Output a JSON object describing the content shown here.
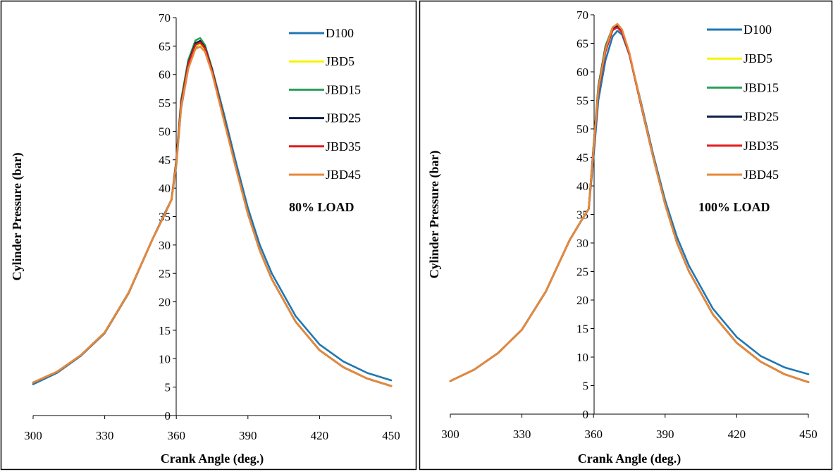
{
  "chart_data": [
    {
      "type": "line",
      "xlabel": "Crank Angle (deg.)",
      "ylabel": "Cylinder Pressure (bar)",
      "annotation": "80% LOAD",
      "xlim": [
        300,
        450
      ],
      "ylim": [
        0,
        70
      ],
      "xticks": [
        300,
        330,
        360,
        390,
        420,
        450
      ],
      "yticks": [
        0,
        5,
        10,
        15,
        20,
        25,
        30,
        35,
        40,
        45,
        50,
        55,
        60,
        65,
        70
      ],
      "grid": false,
      "legend_position": "top-right",
      "x": [
        300,
        310,
        320,
        330,
        340,
        350,
        355,
        358,
        360,
        362,
        365,
        368,
        370,
        372,
        375,
        380,
        385,
        390,
        395,
        400,
        410,
        420,
        430,
        440,
        450
      ],
      "series": [
        {
          "name": "D100",
          "color": "#1f77b4",
          "values": [
            5.5,
            7.5,
            10.5,
            14.5,
            21.5,
            31.0,
            35.5,
            38.0,
            44.0,
            54.0,
            61.0,
            64.8,
            65.5,
            64.8,
            61.0,
            53.0,
            44.5,
            36.5,
            30.0,
            25.0,
            17.5,
            12.5,
            9.5,
            7.5,
            6.2
          ]
        },
        {
          "name": "JBD5",
          "color": "#f5f500",
          "values": [
            5.8,
            7.7,
            10.6,
            14.6,
            21.6,
            31.0,
            35.3,
            38.0,
            44.5,
            54.5,
            61.5,
            65.0,
            65.4,
            64.4,
            60.5,
            52.0,
            43.5,
            35.5,
            29.0,
            24.0,
            16.5,
            11.5,
            8.5,
            6.5,
            5.2
          ]
        },
        {
          "name": "JBD15",
          "color": "#2ca05a",
          "values": [
            5.8,
            7.7,
            10.6,
            14.6,
            21.6,
            31.0,
            35.3,
            38.0,
            45.0,
            55.5,
            62.5,
            66.0,
            66.4,
            65.2,
            61.0,
            52.3,
            43.5,
            35.5,
            29.0,
            24.0,
            16.5,
            11.5,
            8.5,
            6.5,
            5.2
          ]
        },
        {
          "name": "JBD25",
          "color": "#0a1f44",
          "values": [
            5.8,
            7.7,
            10.6,
            14.6,
            21.6,
            31.0,
            35.3,
            38.0,
            44.8,
            55.0,
            62.0,
            65.5,
            65.9,
            64.8,
            60.8,
            52.1,
            43.5,
            35.5,
            29.0,
            24.0,
            16.5,
            11.5,
            8.5,
            6.5,
            5.2
          ]
        },
        {
          "name": "JBD35",
          "color": "#e31a1c",
          "values": [
            5.8,
            7.7,
            10.6,
            14.6,
            21.6,
            31.0,
            35.3,
            38.0,
            44.6,
            54.8,
            61.8,
            65.2,
            65.6,
            64.6,
            60.6,
            52.0,
            43.5,
            35.5,
            29.0,
            24.0,
            16.5,
            11.5,
            8.5,
            6.5,
            5.2
          ]
        },
        {
          "name": "JBD45",
          "color": "#e58a3a",
          "values": [
            5.8,
            7.7,
            10.6,
            14.6,
            21.6,
            31.0,
            35.3,
            38.0,
            44.3,
            54.2,
            61.0,
            64.5,
            64.9,
            64.0,
            60.2,
            51.8,
            43.4,
            35.5,
            29.0,
            24.0,
            16.5,
            11.5,
            8.5,
            6.5,
            5.2
          ]
        }
      ]
    },
    {
      "type": "line",
      "xlabel": "Crank Angle (deg.)",
      "ylabel": "Cylinder Pressure (bar)",
      "annotation": "100% LOAD",
      "xlim": [
        300,
        450
      ],
      "ylim": [
        0,
        70
      ],
      "xticks": [
        300,
        330,
        360,
        390,
        420,
        450
      ],
      "yticks": [
        0,
        5,
        10,
        15,
        20,
        25,
        30,
        35,
        40,
        45,
        50,
        55,
        60,
        65,
        70
      ],
      "grid": false,
      "legend_position": "top-right",
      "x": [
        300,
        310,
        320,
        330,
        340,
        350,
        355,
        358,
        360,
        362,
        365,
        368,
        370,
        372,
        375,
        380,
        385,
        390,
        395,
        400,
        410,
        420,
        430,
        440,
        450
      ],
      "series": [
        {
          "name": "D100",
          "color": "#1f77b4",
          "values": [
            5.8,
            7.8,
            10.7,
            14.8,
            21.5,
            30.5,
            34.0,
            36.0,
            45.0,
            55.0,
            62.0,
            66.2,
            67.2,
            66.5,
            63.0,
            54.5,
            45.5,
            37.5,
            31.0,
            26.0,
            18.5,
            13.5,
            10.2,
            8.2,
            7.0
          ]
        },
        {
          "name": "JBD5",
          "color": "#f5f500",
          "values": [
            5.8,
            7.8,
            10.7,
            14.8,
            21.5,
            30.5,
            34.0,
            36.0,
            46.5,
            57.0,
            64.0,
            67.5,
            68.0,
            67.0,
            63.2,
            54.0,
            45.0,
            36.8,
            30.0,
            25.0,
            17.5,
            12.5,
            9.2,
            7.0,
            5.6
          ]
        },
        {
          "name": "JBD15",
          "color": "#2ca05a",
          "values": [
            5.8,
            7.8,
            10.7,
            14.8,
            21.5,
            30.5,
            34.0,
            36.0,
            47.0,
            57.5,
            64.5,
            67.8,
            68.2,
            67.1,
            63.2,
            54.0,
            45.0,
            36.8,
            30.0,
            25.0,
            17.5,
            12.5,
            9.2,
            7.0,
            5.6
          ]
        },
        {
          "name": "JBD25",
          "color": "#0a1f44",
          "values": [
            5.8,
            7.8,
            10.7,
            14.8,
            21.5,
            30.5,
            34.0,
            36.0,
            46.8,
            57.2,
            64.2,
            67.6,
            68.0,
            67.0,
            63.2,
            54.0,
            45.0,
            36.8,
            30.0,
            25.0,
            17.5,
            12.5,
            9.2,
            7.0,
            5.6
          ]
        },
        {
          "name": "JBD35",
          "color": "#e31a1c",
          "values": [
            5.8,
            7.8,
            10.7,
            14.8,
            21.5,
            30.5,
            34.0,
            36.0,
            46.2,
            56.5,
            63.5,
            67.3,
            67.8,
            66.9,
            63.1,
            54.0,
            45.0,
            36.8,
            30.0,
            25.0,
            17.5,
            12.5,
            9.2,
            7.0,
            5.6
          ]
        },
        {
          "name": "JBD45",
          "color": "#e58a3a",
          "values": [
            5.8,
            7.8,
            10.7,
            14.8,
            21.5,
            30.5,
            34.0,
            36.0,
            46.6,
            57.0,
            64.0,
            67.8,
            68.4,
            67.4,
            63.4,
            54.2,
            45.0,
            36.8,
            30.0,
            25.0,
            17.5,
            12.5,
            9.2,
            7.0,
            5.6
          ]
        }
      ]
    }
  ]
}
